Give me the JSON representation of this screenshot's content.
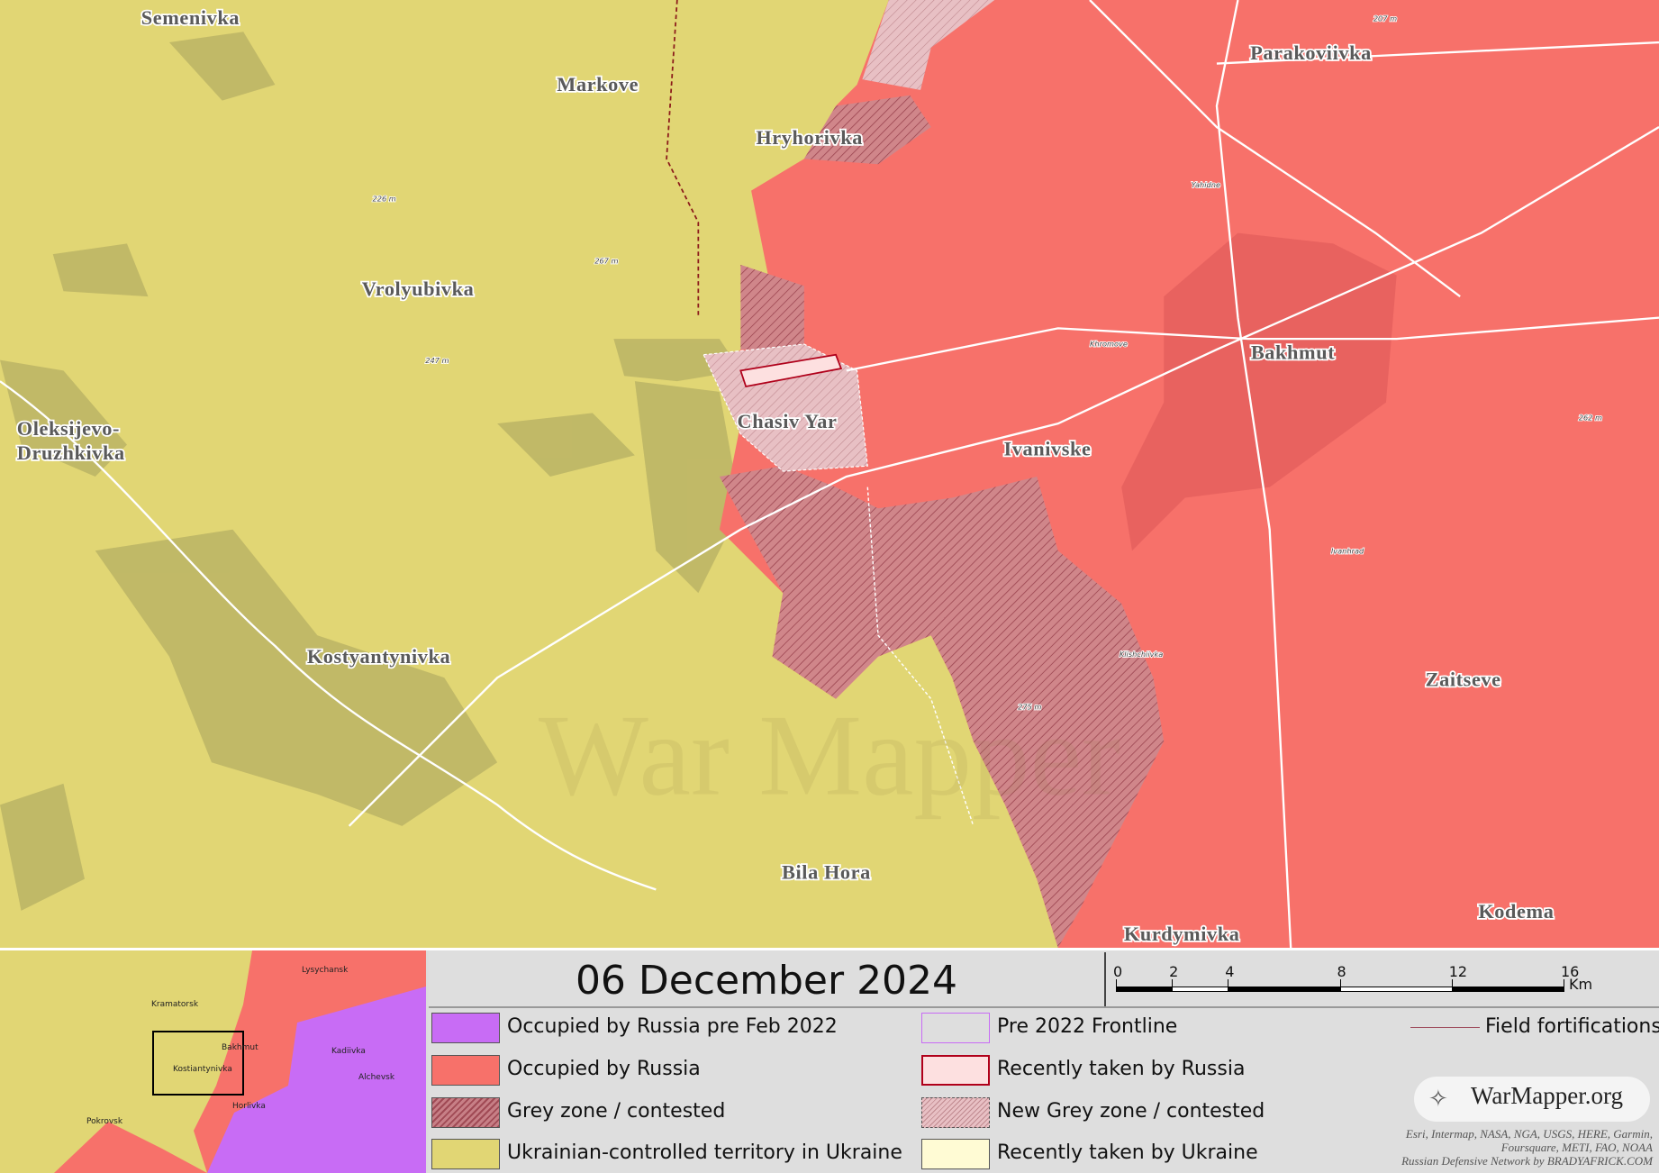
{
  "map": {
    "places": [
      "Semenivka",
      "Markove",
      "Hryhorivka",
      "Vrolyubivka",
      "Oleksijevo-",
      "Druzhkivka",
      "Chasiv Yar",
      "Ivanivske",
      "Kostyantynivka",
      "Bila Hora",
      "Kurdymivka",
      "Parakoviivka",
      "Bakhmut",
      "Zaitseve",
      "Kodema"
    ],
    "small_labels": [
      "226 m",
      "267 m",
      "247 m",
      "275 m",
      "262 m",
      "207 m",
      "Yahidne",
      "Khromove",
      "Ivanhrad",
      "Klishchiivka"
    ],
    "watermark": "War Mapper"
  },
  "inset": {
    "places": [
      "Lysychansk",
      "Kramatorsk",
      "Bakhmut",
      "Kostiantynivka",
      "Kadiivka",
      "Alchevsk",
      "Pokrovsk",
      "Horlivka"
    ]
  },
  "date": "06 December 2024",
  "scale": {
    "ticks": [
      0,
      2,
      4,
      8,
      12,
      16
    ],
    "max": 16,
    "unit": "Km"
  },
  "legend": [
    {
      "label": "Occupied by Russia pre Feb 2022"
    },
    {
      "label": "Occupied by Russia"
    },
    {
      "label": "Grey zone / contested"
    },
    {
      "label": "Ukrainian-controlled territory in Ukraine"
    },
    {
      "label": "Pre 2022 Frontline"
    },
    {
      "label": "Recently taken by Russia"
    },
    {
      "label": "New Grey zone / contested"
    },
    {
      "label": "Recently taken by Ukraine"
    },
    {
      "label": "Field fortifications"
    }
  ],
  "brand": "WarMapper.org",
  "attribution": [
    "Esri, Intermap, NASA, NGA, USGS, HERE, Garmin,",
    "Foursquare, METI, FAO, NOAA",
    "Russian Defensive Network by BRADYAFRICK.COM"
  ]
}
